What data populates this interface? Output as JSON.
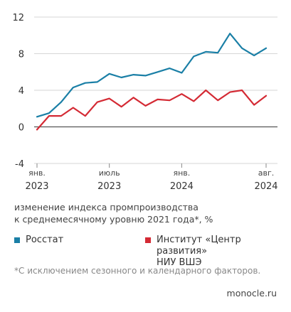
{
  "chart_data": {
    "type": "line",
    "ylim": [
      -4,
      12
    ],
    "y_ticks": [
      "12",
      "8",
      "4",
      "0",
      "-4"
    ],
    "x_tick_labels": [
      {
        "top": "янв.",
        "bottom": "2023"
      },
      {
        "top": "июль",
        "bottom": "2023"
      },
      {
        "top": "янв.",
        "bottom": "2024"
      },
      {
        "top": "авг.",
        "bottom": "2024"
      }
    ],
    "ylabel": "изменение индекса промпроизводства к среднемесячному уровню 2021 года*, %",
    "x": [
      "2023-01",
      "2023-02",
      "2023-03",
      "2023-04",
      "2023-05",
      "2023-06",
      "2023-07",
      "2023-08",
      "2023-09",
      "2023-10",
      "2023-11",
      "2023-12",
      "2024-01",
      "2024-02",
      "2024-03",
      "2024-04",
      "2024-05",
      "2024-06",
      "2024-07",
      "2024-08"
    ],
    "series": [
      {
        "name": "Росстат",
        "color": "#1a7fa6",
        "values": [
          1.1,
          1.5,
          2.7,
          4.3,
          4.8,
          4.9,
          5.8,
          5.4,
          5.7,
          5.6,
          6.0,
          6.4,
          5.9,
          7.7,
          8.2,
          8.1,
          10.2,
          8.6,
          7.8,
          8.6
        ]
      },
      {
        "name": "Институт «Центр развития» НИУ ВШЭ",
        "color": "#d42a34",
        "values": [
          -0.3,
          1.2,
          1.2,
          2.1,
          1.2,
          2.7,
          3.1,
          2.2,
          3.2,
          2.3,
          3.0,
          2.9,
          3.6,
          2.8,
          4.0,
          2.9,
          3.8,
          4.0,
          2.4,
          3.4
        ]
      }
    ]
  },
  "caption": {
    "line1": "изменение индекса промпроизводства",
    "line2": "к среднемесячному уровню 2021 года*, %"
  },
  "legend": {
    "rosstat": "Росстат",
    "hse_line1": "Институт «Центр развития»",
    "hse_line2": "НИУ ВШЭ"
  },
  "footnote": "*С исключением сезонного и календарного факторов.",
  "brand": "monocle.ru"
}
